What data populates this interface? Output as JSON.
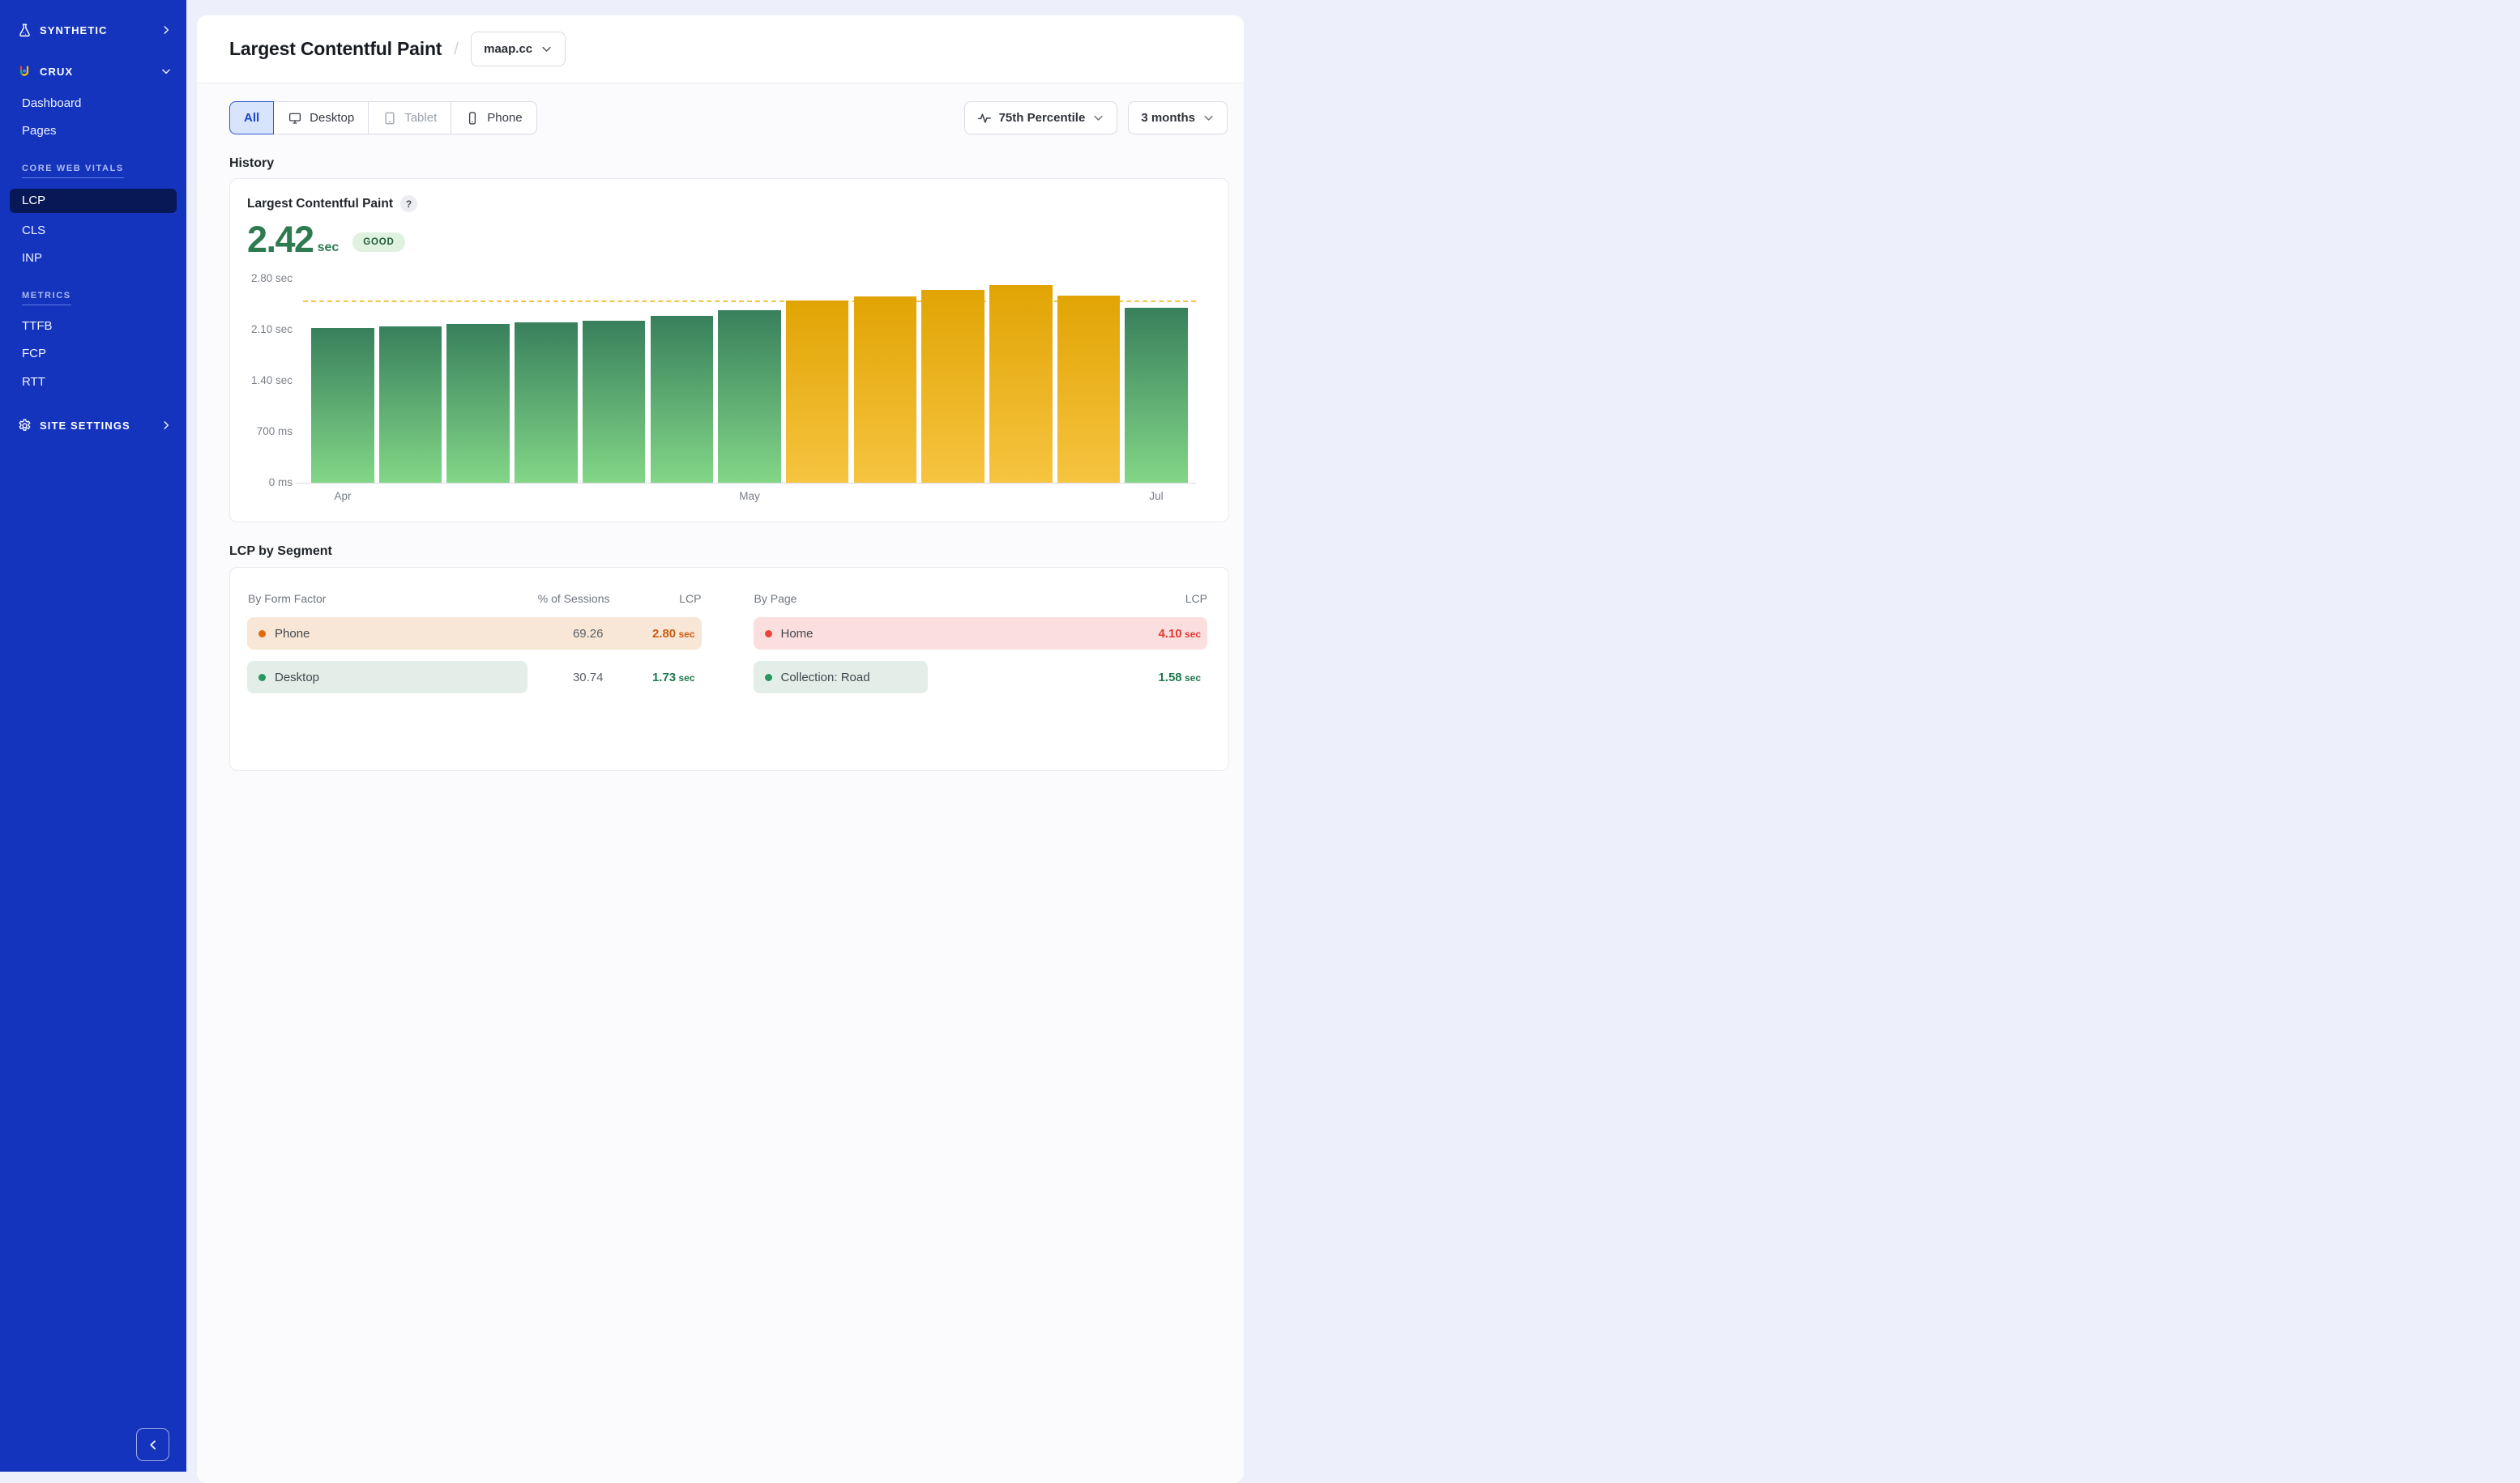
{
  "theme": {
    "sidebar_bg": "#1434BD",
    "sidebar_active_bg": "#081856",
    "page_bg": "#EDF0FA",
    "accent_blue": "#1D47C9",
    "good_green": "#2E7B51",
    "warn_amber": "#E1A404",
    "poor_red": "#E03B30",
    "threshold_color": "#F4C54D"
  },
  "sidebar": {
    "synthetic_label": "SYNTHETIC",
    "crux_label": "CRUX",
    "dashboard_label": "Dashboard",
    "pages_label": "Pages",
    "core_web_vitals_header": "CORE WEB VITALS",
    "lcp_label": "LCP",
    "cls_label": "CLS",
    "inp_label": "INP",
    "metrics_header": "METRICS",
    "ttfb_label": "TTFB",
    "fcp_label": "FCP",
    "rtt_label": "RTT",
    "site_settings_label": "SITE SETTINGS"
  },
  "header": {
    "title": "Largest Contentful Paint",
    "separator": "/",
    "site_selector_value": "maap.cc"
  },
  "toolbar": {
    "device_tabs": [
      {
        "label": "All",
        "active": true
      },
      {
        "label": "Desktop",
        "icon": "monitor-icon"
      },
      {
        "label": "Tablet",
        "icon": "tablet-icon",
        "disabled": true
      },
      {
        "label": "Phone",
        "icon": "smartphone-icon"
      }
    ],
    "percentile_label": "75th Percentile",
    "range_label": "3 months"
  },
  "history": {
    "heading": "History",
    "card_title": "Largest Contentful Paint",
    "help_glyph": "?",
    "value": "2.42",
    "unit": "sec",
    "badge": "GOOD"
  },
  "chart_data": {
    "type": "bar",
    "title": "Largest Contentful Paint",
    "unit": "sec",
    "current_value": 2.42,
    "current_status": "GOOD",
    "threshold": 2.5,
    "ylim": [
      0,
      2.8
    ],
    "grid": false,
    "y_ticks": [
      {
        "value": 2.8,
        "label": "2.80 sec"
      },
      {
        "value": 2.1,
        "label": "2.10 sec"
      },
      {
        "value": 1.4,
        "label": "1.40 sec"
      },
      {
        "value": 0.7,
        "label": "700 ms"
      },
      {
        "value": 0,
        "label": "0 ms"
      }
    ],
    "x_tick_labels": [
      {
        "index": 0,
        "label": "Apr"
      },
      {
        "index": 6,
        "label": "May"
      },
      {
        "index": 12,
        "label": "Jul"
      }
    ],
    "bars": [
      {
        "value": 2.12,
        "status": "good"
      },
      {
        "value": 2.15,
        "status": "good"
      },
      {
        "value": 2.18,
        "status": "good"
      },
      {
        "value": 2.2,
        "status": "good"
      },
      {
        "value": 2.22,
        "status": "good"
      },
      {
        "value": 2.29,
        "status": "good"
      },
      {
        "value": 2.37,
        "status": "good"
      },
      {
        "value": 2.5,
        "status": "ni"
      },
      {
        "value": 2.56,
        "status": "ni"
      },
      {
        "value": 2.64,
        "status": "ni"
      },
      {
        "value": 2.71,
        "status": "ni"
      },
      {
        "value": 2.57,
        "status": "ni"
      },
      {
        "value": 2.4,
        "status": "good"
      }
    ],
    "colors": {
      "good_top": "#38805C",
      "good_bottom": "#83D687",
      "ni_top": "#E1A404",
      "ni_bottom": "#F6C440"
    }
  },
  "segments": {
    "heading": "LCP by Segment",
    "form_factor": {
      "columns": [
        "By Form Factor",
        "% of Sessions",
        "LCP"
      ],
      "rows": [
        {
          "label": "Phone",
          "sessions": "69.26",
          "lcp": "2.80",
          "unit": "sec",
          "status": "warn",
          "bar_width_pct": 100
        },
        {
          "label": "Desktop",
          "sessions": "30.74",
          "lcp": "1.73",
          "unit": "sec",
          "status": "good",
          "bar_width_pct": 61.8
        }
      ]
    },
    "by_page": {
      "columns": [
        "By Page",
        "LCP"
      ],
      "rows": [
        {
          "label": "Home",
          "lcp": "4.10",
          "unit": "sec",
          "status": "poor",
          "bar_width_pct": 100
        },
        {
          "label": "Collection: Road",
          "lcp": "1.58",
          "unit": "sec",
          "status": "good",
          "bar_width_pct": 38.5
        }
      ]
    },
    "status_colors": {
      "good": {
        "bg": "#E3EEE8",
        "dot": "#27965F",
        "text": "#1E7A4D"
      },
      "warn": {
        "bg": "#F8E7D6",
        "dot": "#DF6A0F",
        "text": "#CB5A10"
      },
      "poor": {
        "bg": "#FBDFDF",
        "dot": "#E9463B",
        "text": "#E23B31"
      }
    }
  }
}
